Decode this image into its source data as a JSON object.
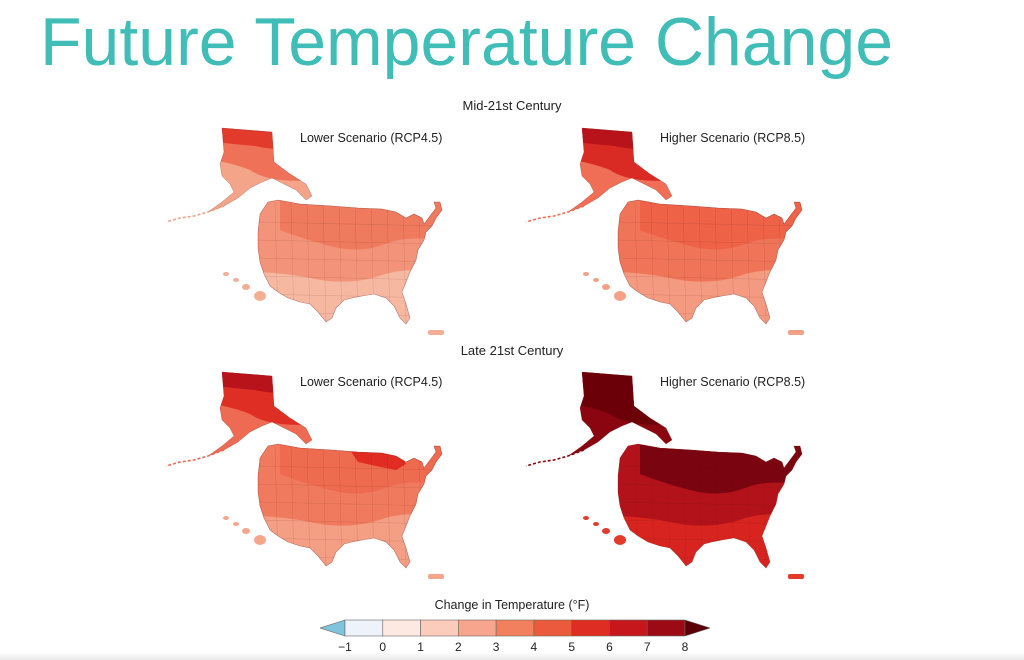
{
  "page": {
    "title": "Future Temperature Change"
  },
  "sections": {
    "mid": "Mid-21st Century",
    "late": "Late 21st Century"
  },
  "panels": [
    {
      "scenario": "Lower Scenario (RCP4.5)",
      "period": "Mid-21st Century",
      "palette": {
        "alaska_north": "#e23a2b",
        "alaska_mid": "#ef7158",
        "alaska_south": "#f4a488",
        "north": "#ef7a5e",
        "mid": "#f3947a",
        "south": "#f7b8a2",
        "islands": "#f6ad95"
      }
    },
    {
      "scenario": "Higher Scenario (RCP8.5)",
      "period": "Mid-21st Century",
      "palette": {
        "alaska_north": "#b8131b",
        "alaska_mid": "#d92a23",
        "alaska_south": "#ef6e55",
        "north": "#ee6248",
        "mid": "#f07558",
        "south": "#f49a80",
        "islands": "#f5a188"
      }
    },
    {
      "scenario": "Lower Scenario (RCP4.5)",
      "period": "Late 21st Century",
      "palette": {
        "alaska_north": "#b8131b",
        "alaska_mid": "#df2f25",
        "alaska_south": "#ee6a52",
        "north": "#ee6b50",
        "mid": "#f07a5e",
        "south": "#f49e84",
        "islands": "#f5a58c",
        "hot": "#e02c22"
      }
    },
    {
      "scenario": "Higher Scenario (RCP8.5)",
      "period": "Late 21st Century",
      "palette": {
        "alaska_north": "#6b0008",
        "alaska_mid": "#6b0008",
        "alaska_south": "#8a0510",
        "north": "#7a0410",
        "mid": "#b3121a",
        "south": "#d8241f",
        "islands": "#e33a2a"
      }
    }
  ],
  "legend": {
    "title": "Change in Temperature (°F)",
    "ticks": [
      "−1",
      "0",
      "1",
      "2",
      "3",
      "4",
      "5",
      "6",
      "7",
      "8"
    ],
    "bins": [
      {
        "from": -1,
        "to": 0,
        "color": "#eef2fb"
      },
      {
        "from": 0,
        "to": 1,
        "color": "#fde9e2"
      },
      {
        "from": 1,
        "to": 2,
        "color": "#fbcbbb"
      },
      {
        "from": 2,
        "to": 3,
        "color": "#f7a68d"
      },
      {
        "from": 3,
        "to": 4,
        "color": "#f2805f"
      },
      {
        "from": 4,
        "to": 5,
        "color": "#ec5a3d"
      },
      {
        "from": 5,
        "to": 6,
        "color": "#de2e23"
      },
      {
        "from": 6,
        "to": 7,
        "color": "#c5171c"
      },
      {
        "from": 7,
        "to": 8,
        "color": "#9c0b15"
      }
    ],
    "low_arrow_color": "#7fc3dc",
    "high_arrow_color": "#5a0006"
  }
}
